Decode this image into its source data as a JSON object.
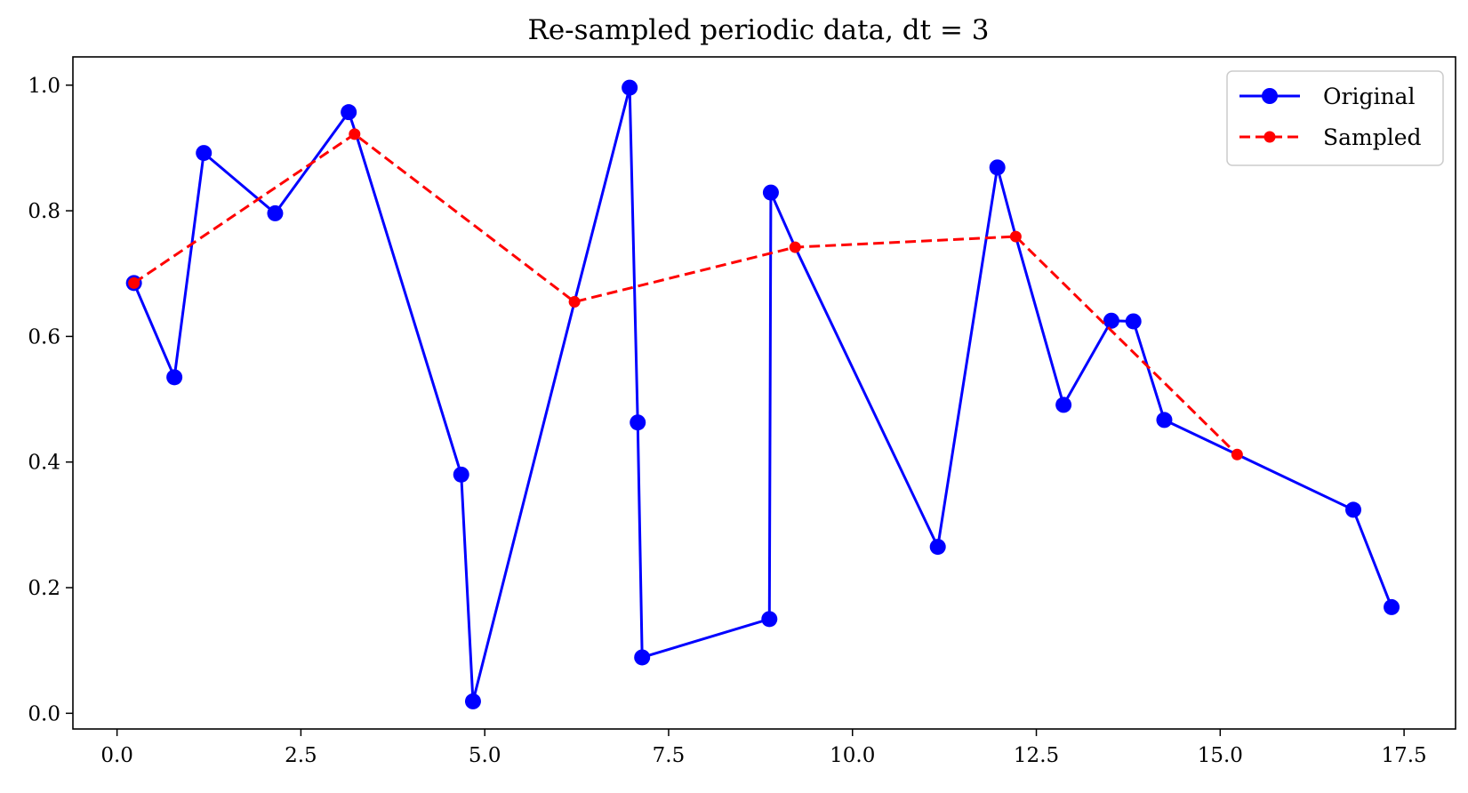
{
  "chart_data": {
    "type": "line",
    "title": "Re-sampled periodic data, dt = 3",
    "xlabel": "",
    "ylabel": "",
    "xlim": [
      -0.6,
      18.2
    ],
    "ylim": [
      -0.025,
      1.045
    ],
    "x_ticks": [
      0.0,
      2.5,
      5.0,
      7.5,
      10.0,
      12.5,
      15.0,
      17.5
    ],
    "x_tick_labels": [
      "0.0",
      "2.5",
      "5.0",
      "7.5",
      "10.0",
      "12.5",
      "15.0",
      "17.5"
    ],
    "y_ticks": [
      0.0,
      0.2,
      0.4,
      0.6,
      0.8,
      1.0
    ],
    "y_tick_labels": [
      "0.0",
      "0.2",
      "0.4",
      "0.6",
      "0.8",
      "1.0"
    ],
    "grid": false,
    "legend_position": "top-right",
    "series": [
      {
        "name": "Original",
        "color": "#0000ff",
        "line_style": "solid",
        "marker": "circle",
        "x": [
          0.23,
          0.78,
          1.18,
          2.15,
          3.15,
          3.25,
          4.68,
          4.84,
          6.22,
          6.97,
          7.08,
          7.14,
          8.87,
          8.89,
          9.22,
          11.16,
          11.97,
          12.22,
          12.87,
          13.52,
          13.82,
          14.24,
          15.23,
          16.81,
          17.33
        ],
        "y": [
          0.685,
          0.535,
          0.892,
          0.796,
          0.957,
          0.922,
          0.38,
          0.019,
          0.655,
          0.996,
          0.463,
          0.089,
          0.15,
          0.829,
          0.742,
          0.265,
          0.869,
          0.759,
          0.491,
          0.625,
          0.624,
          0.467,
          0.412,
          0.324,
          0.169
        ],
        "visible_marker": [
          true,
          true,
          true,
          true,
          true,
          false,
          true,
          true,
          false,
          true,
          true,
          true,
          true,
          true,
          false,
          true,
          true,
          false,
          true,
          true,
          true,
          true,
          false,
          true,
          true
        ]
      },
      {
        "name": "Sampled",
        "color": "#ff0000",
        "line_style": "dashed",
        "marker": "circle",
        "x": [
          0.23,
          3.23,
          6.22,
          9.22,
          12.22,
          15.23
        ],
        "y": [
          0.685,
          0.922,
          0.655,
          0.742,
          0.759,
          0.412
        ]
      }
    ]
  }
}
